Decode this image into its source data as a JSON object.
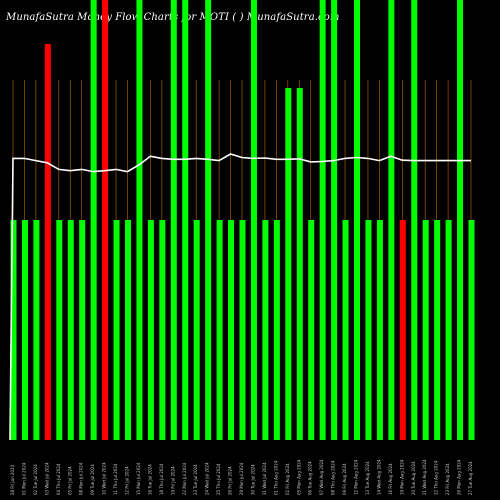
{
  "chart_data": {
    "type": "bar",
    "title": "MunafaSutra  Money Flow  Charts for MOTI                    (  ) MunafaSutra.com",
    "colors": {
      "up": "#00ff00",
      "down": "#ff0000",
      "line": "#ffffff",
      "grid": "#a35a00",
      "background": "#000000"
    },
    "ylim": [
      0,
      100
    ],
    "categories": [
      "28 Fri Jun 2024",
      "01 Mon Jul 2024",
      "02 Tue Jul 2024",
      "03 Wed Jul 2024",
      "04 Thu Jul 2024",
      "05 Fri Jul 2024",
      "08 Mon Jul 2024",
      "09 Tue Jul 2024",
      "10 Wed Jul 2024",
      "11 Thu Jul 2024",
      "12 Fri Jul 2024",
      "15 Mon Jul 2024",
      "16 Tue Jul 2024",
      "18 Thu Jul 2024",
      "19 Fri Jul 2024",
      "22 Mon Jul 2024",
      "23 Tue Jul 2024",
      "24 Wed Jul 2024",
      "25 Thu Jul 2024",
      "26 Fri Jul 2024",
      "29 Mon Jul 2024",
      "30 Tue Jul 2024",
      "31 Wed Jul 2024",
      "01 Thu Aug 2024",
      "02 Fri Aug 2024",
      "05 Mon Aug 2024",
      "06 Tue Aug 2024",
      "07 Wed Aug 2024",
      "08 Thu Aug 2024",
      "09 Fri Aug 2024",
      "12 Mon Aug 2024",
      "13 Tue Aug 2024",
      "14 Wed Aug 2024",
      "16 Fri Aug 2024",
      "19 Mon Aug 2024",
      "20 Tue Aug 2024",
      "21 Wed Aug 2024",
      "22 Thu Aug 2024",
      "23 Fri Aug 2024",
      "26 Mon Aug 2024",
      "27 Tue Aug 2024"
    ],
    "values": [
      50,
      50,
      50,
      90,
      50,
      50,
      50,
      100,
      100,
      50,
      50,
      100,
      50,
      50,
      100,
      100,
      50,
      100,
      50,
      50,
      50,
      100,
      50,
      50,
      80,
      80,
      50,
      100,
      100,
      50,
      100,
      50,
      50,
      100,
      50,
      100,
      50,
      50,
      50,
      100,
      50
    ],
    "colors_by_bar": [
      "up",
      "up",
      "up",
      "down",
      "up",
      "up",
      "up",
      "up",
      "down",
      "up",
      "up",
      "up",
      "up",
      "up",
      "up",
      "up",
      "up",
      "up",
      "up",
      "up",
      "up",
      "up",
      "up",
      "up",
      "up",
      "up",
      "up",
      "up",
      "up",
      "up",
      "up",
      "up",
      "up",
      "up",
      "down",
      "up",
      "up",
      "up",
      "up",
      "up",
      "up"
    ],
    "line": [
      64,
      64,
      63.5,
      63,
      61.5,
      61.2,
      61.5,
      61,
      61.2,
      61.5,
      61,
      62.5,
      64.5,
      64,
      63.8,
      63.8,
      64,
      63.8,
      63.5,
      65,
      64.2,
      64,
      64.1,
      63.8,
      63.8,
      63.9,
      63.2,
      63.3,
      63.5,
      64,
      64.2,
      64,
      63.5,
      64.5,
      63.6,
      63.5,
      63.5,
      63.5,
      63.5,
      63.5,
      63.5
    ],
    "line_start": 0
  }
}
